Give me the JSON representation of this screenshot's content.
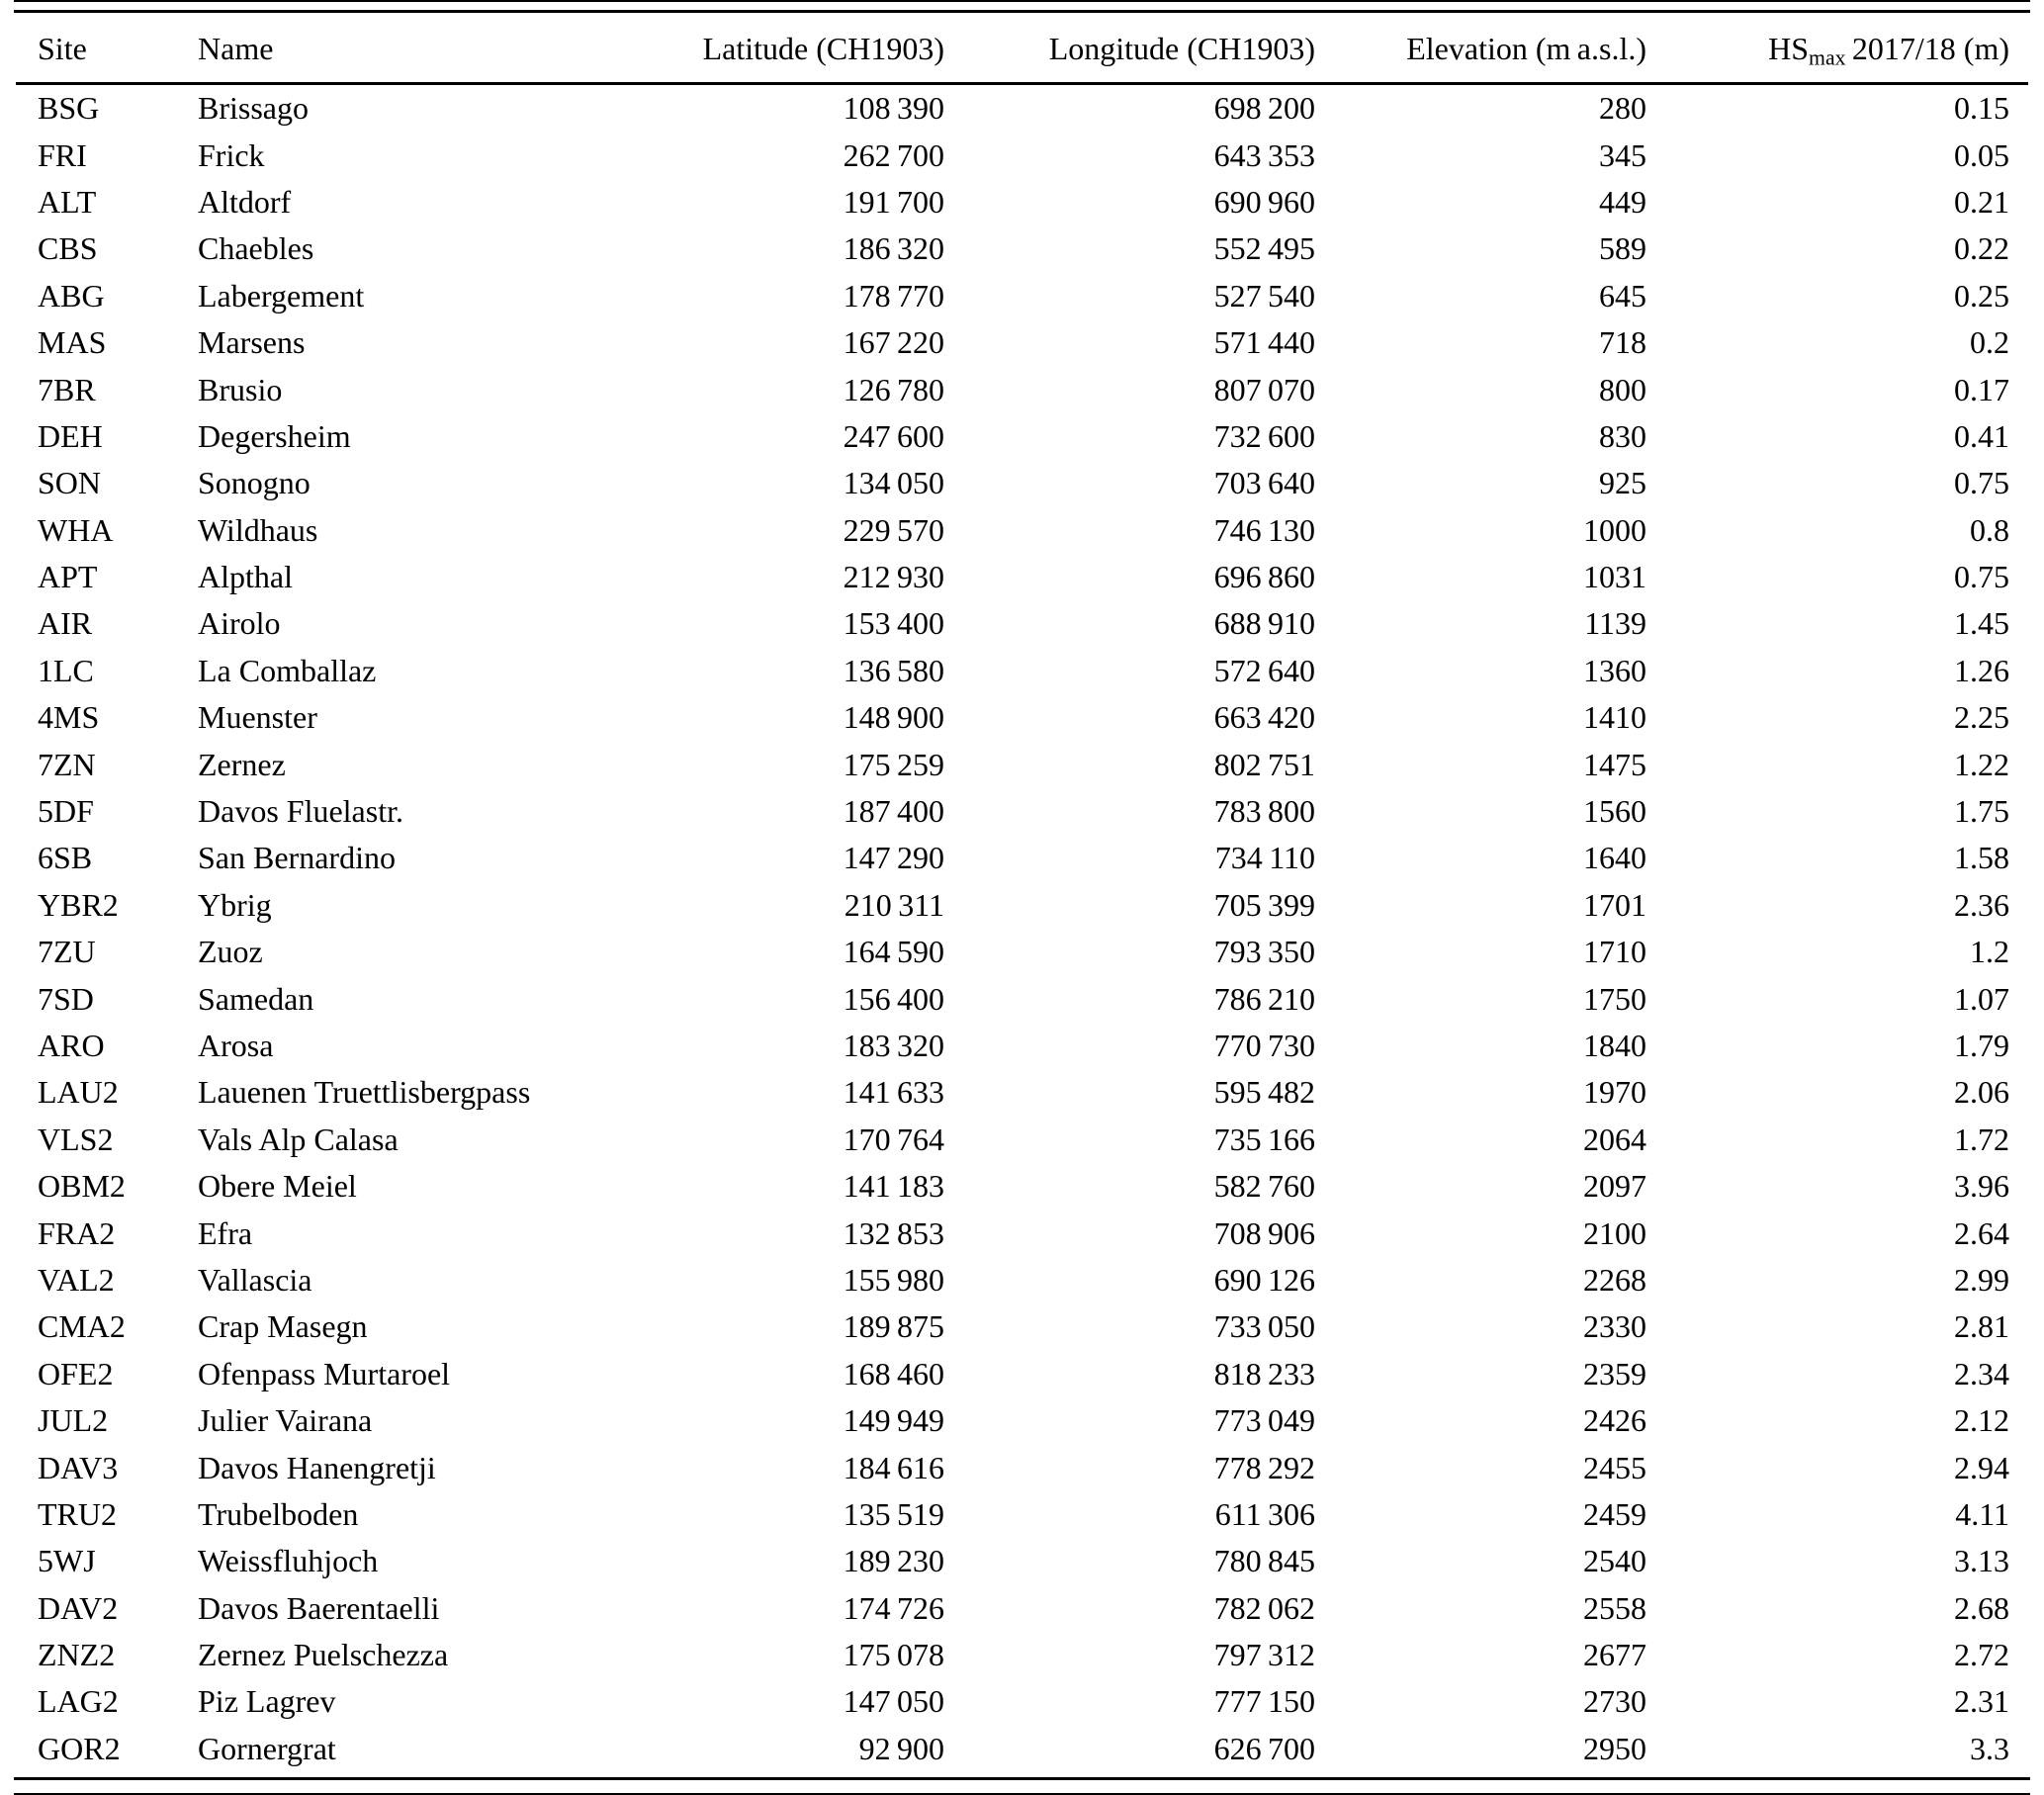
{
  "table": {
    "columns": [
      {
        "key": "site",
        "label": "Site",
        "align": "left"
      },
      {
        "key": "name",
        "label": "Name",
        "align": "left"
      },
      {
        "key": "latitude",
        "label": "Latitude (CH1903)",
        "align": "right"
      },
      {
        "key": "longitude",
        "label": "Longitude (CH1903)",
        "align": "right"
      },
      {
        "key": "elevation",
        "label": "Elevation (m a.s.l.)",
        "align": "right"
      },
      {
        "key": "hsmax",
        "label_prefix": "HS",
        "label_sub": "max",
        "label_suffix": " 2017/18 (m)",
        "align": "right"
      }
    ],
    "rows": [
      [
        "BSG",
        "Brissago",
        "108 390",
        "698 200",
        "280",
        "0.15"
      ],
      [
        "FRI",
        "Frick",
        "262 700",
        "643 353",
        "345",
        "0.05"
      ],
      [
        "ALT",
        "Altdorf",
        "191 700",
        "690 960",
        "449",
        "0.21"
      ],
      [
        "CBS",
        "Chaebles",
        "186 320",
        "552 495",
        "589",
        "0.22"
      ],
      [
        "ABG",
        "Labergement",
        "178 770",
        "527 540",
        "645",
        "0.25"
      ],
      [
        "MAS",
        "Marsens",
        "167 220",
        "571 440",
        "718",
        "0.2"
      ],
      [
        "7BR",
        "Brusio",
        "126 780",
        "807 070",
        "800",
        "0.17"
      ],
      [
        "DEH",
        "Degersheim",
        "247 600",
        "732 600",
        "830",
        "0.41"
      ],
      [
        "SON",
        "Sonogno",
        "134 050",
        "703 640",
        "925",
        "0.75"
      ],
      [
        "WHA",
        "Wildhaus",
        "229 570",
        "746 130",
        "1000",
        "0.8"
      ],
      [
        "APT",
        "Alpthal",
        "212 930",
        "696 860",
        "1031",
        "0.75"
      ],
      [
        "AIR",
        "Airolo",
        "153 400",
        "688 910",
        "1139",
        "1.45"
      ],
      [
        "1LC",
        "La Comballaz",
        "136 580",
        "572 640",
        "1360",
        "1.26"
      ],
      [
        "4MS",
        "Muenster",
        "148 900",
        "663 420",
        "1410",
        "2.25"
      ],
      [
        "7ZN",
        "Zernez",
        "175 259",
        "802 751",
        "1475",
        "1.22"
      ],
      [
        "5DF",
        "Davos Fluelastr.",
        "187 400",
        "783 800",
        "1560",
        "1.75"
      ],
      [
        "6SB",
        "San Bernardino",
        "147 290",
        "734 110",
        "1640",
        "1.58"
      ],
      [
        "YBR2",
        "Ybrig",
        "210 311",
        "705 399",
        "1701",
        "2.36"
      ],
      [
        "7ZU",
        "Zuoz",
        "164 590",
        "793 350",
        "1710",
        "1.2"
      ],
      [
        "7SD",
        "Samedan",
        "156 400",
        "786 210",
        "1750",
        "1.07"
      ],
      [
        "ARO",
        "Arosa",
        "183 320",
        "770 730",
        "1840",
        "1.79"
      ],
      [
        "LAU2",
        "Lauenen Truettlisbergpass",
        "141 633",
        "595 482",
        "1970",
        "2.06"
      ],
      [
        "VLS2",
        "Vals Alp Calasa",
        "170 764",
        "735 166",
        "2064",
        "1.72"
      ],
      [
        "OBM2",
        "Obere Meiel",
        "141 183",
        "582 760",
        "2097",
        "3.96"
      ],
      [
        "FRA2",
        "Efra",
        "132 853",
        "708 906",
        "2100",
        "2.64"
      ],
      [
        "VAL2",
        "Vallascia",
        "155 980",
        "690 126",
        "2268",
        "2.99"
      ],
      [
        "CMA2",
        "Crap Masegn",
        "189 875",
        "733 050",
        "2330",
        "2.81"
      ],
      [
        "OFE2",
        "Ofenpass Murtaroel",
        "168 460",
        "818 233",
        "2359",
        "2.34"
      ],
      [
        "JUL2",
        "Julier Vairana",
        "149 949",
        "773 049",
        "2426",
        "2.12"
      ],
      [
        "DAV3",
        "Davos Hanengretji",
        "184 616",
        "778 292",
        "2455",
        "2.94"
      ],
      [
        "TRU2",
        "Trubelboden",
        "135 519",
        "611 306",
        "2459",
        "4.11"
      ],
      [
        "5WJ",
        "Weissfluhjoch",
        "189 230",
        "780 845",
        "2540",
        "3.13"
      ],
      [
        "DAV2",
        "Davos Baerentaelli",
        "174 726",
        "782 062",
        "2558",
        "2.68"
      ],
      [
        "ZNZ2",
        "Zernez Puelschezza",
        "175 078",
        "797 312",
        "2677",
        "2.72"
      ],
      [
        "LAG2",
        "Piz Lagrev",
        "147 050",
        "777 150",
        "2730",
        "2.31"
      ],
      [
        "GOR2",
        "Gornergrat",
        "92 900",
        "626 700",
        "2950",
        "3.3"
      ]
    ]
  }
}
